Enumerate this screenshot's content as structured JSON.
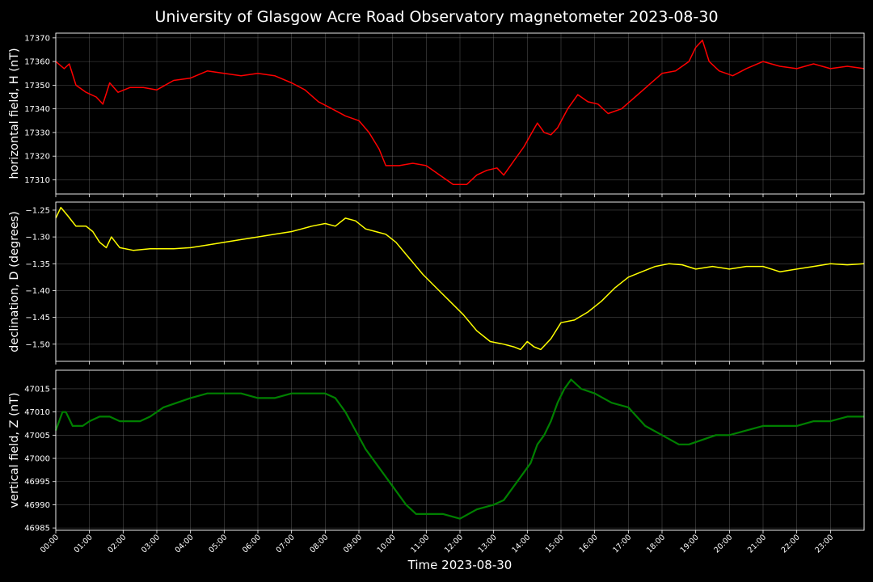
{
  "chart_data": {
    "type": "line",
    "title": "University of Glasgow Acre Road Observatory magnetometer 2023-08-30",
    "xlabel": "Time 2023-08-30",
    "x_ticks": [
      "00:00",
      "01:00",
      "02:00",
      "03:00",
      "04:00",
      "05:00",
      "06:00",
      "07:00",
      "08:00",
      "09:00",
      "10:00",
      "11:00",
      "12:00",
      "13:00",
      "14:00",
      "15:00",
      "16:00",
      "17:00",
      "18:00",
      "19:00",
      "20:00",
      "21:00",
      "22:00",
      "23:00"
    ],
    "x_range_hours": [
      0,
      24
    ],
    "grid": true,
    "panels": [
      {
        "ylabel": "horizontal field, H (nT)",
        "color": "#ff0000",
        "ylim": [
          17304,
          17372
        ],
        "yticks": [
          17310,
          17320,
          17330,
          17340,
          17350,
          17360,
          17370
        ],
        "series": {
          "x": [
            0,
            0.25,
            0.4,
            0.6,
            0.9,
            1.2,
            1.4,
            1.6,
            1.85,
            2.2,
            2.6,
            3.0,
            3.5,
            4.0,
            4.5,
            5.0,
            5.5,
            6.0,
            6.5,
            7.0,
            7.4,
            7.8,
            8.2,
            8.6,
            9.0,
            9.3,
            9.6,
            9.8,
            10.2,
            10.6,
            11.0,
            11.4,
            11.8,
            12.2,
            12.5,
            12.8,
            13.1,
            13.3,
            13.6,
            13.9,
            14.1,
            14.3,
            14.5,
            14.7,
            14.9,
            15.2,
            15.5,
            15.8,
            16.1,
            16.4,
            16.8,
            17.2,
            17.6,
            18.0,
            18.4,
            18.8,
            19.0,
            19.2,
            19.4,
            19.7,
            20.1,
            20.5,
            21.0,
            21.5,
            22.0,
            22.5,
            23.0,
            23.5,
            24.0
          ],
          "values": [
            17360,
            17357,
            17359,
            17350,
            17347,
            17345,
            17342,
            17351,
            17347,
            17349,
            17349,
            17348,
            17352,
            17353,
            17356,
            17355,
            17354,
            17355,
            17354,
            17351,
            17348,
            17343,
            17340,
            17337,
            17335,
            17330,
            17323,
            17316,
            17316,
            17317,
            17316,
            17312,
            17308,
            17308,
            17312,
            17314,
            17315,
            17312,
            17318,
            17324,
            17329,
            17334,
            17330,
            17329,
            17332,
            17340,
            17346,
            17343,
            17342,
            17338,
            17340,
            17345,
            17350,
            17355,
            17356,
            17360,
            17366,
            17369,
            17360,
            17356,
            17354,
            17357,
            17360,
            17358,
            17357,
            17359,
            17357,
            17358,
            17357
          ]
        }
      },
      {
        "ylabel": "declination, D (degrees)",
        "color": "#ffff00",
        "ylim": [
          -1.532,
          -1.235
        ],
        "yticks": [
          -1.25,
          -1.3,
          -1.35,
          -1.4,
          -1.45,
          -1.5
        ],
        "ytick_labels": [
          "−1.25",
          "−1.30",
          "−1.35",
          "−1.40",
          "−1.45",
          "−1.50"
        ],
        "series": {
          "x": [
            0,
            0.15,
            0.35,
            0.6,
            0.9,
            1.1,
            1.3,
            1.5,
            1.65,
            1.9,
            2.3,
            2.8,
            3.5,
            4.0,
            4.5,
            5.0,
            5.5,
            6.0,
            6.5,
            7.0,
            7.3,
            7.6,
            8.0,
            8.3,
            8.6,
            8.9,
            9.2,
            9.5,
            9.8,
            10.1,
            10.5,
            10.9,
            11.3,
            11.7,
            12.1,
            12.5,
            12.9,
            13.3,
            13.6,
            13.8,
            14.0,
            14.2,
            14.4,
            14.7,
            15.0,
            15.4,
            15.8,
            16.2,
            16.6,
            17.0,
            17.4,
            17.8,
            18.2,
            18.6,
            19.0,
            19.5,
            20.0,
            20.5,
            21.0,
            21.5,
            22.0,
            22.5,
            23.0,
            23.5,
            24.0
          ],
          "values": [
            -1.265,
            -1.245,
            -1.26,
            -1.28,
            -1.28,
            -1.29,
            -1.31,
            -1.32,
            -1.3,
            -1.32,
            -1.325,
            -1.322,
            -1.322,
            -1.32,
            -1.315,
            -1.31,
            -1.305,
            -1.3,
            -1.295,
            -1.29,
            -1.285,
            -1.28,
            -1.275,
            -1.28,
            -1.265,
            -1.27,
            -1.285,
            -1.29,
            -1.295,
            -1.31,
            -1.34,
            -1.37,
            -1.395,
            -1.42,
            -1.445,
            -1.475,
            -1.495,
            -1.5,
            -1.505,
            -1.51,
            -1.495,
            -1.505,
            -1.51,
            -1.49,
            -1.46,
            -1.455,
            -1.44,
            -1.42,
            -1.395,
            -1.375,
            -1.365,
            -1.355,
            -1.35,
            -1.352,
            -1.36,
            -1.355,
            -1.36,
            -1.355,
            -1.355,
            -1.365,
            -1.36,
            -1.355,
            -1.35,
            -1.352,
            -1.35
          ]
        }
      },
      {
        "ylabel": "vertical field, Z (nT)",
        "color": "#008000",
        "ylim": [
          46984.5,
          47019
        ],
        "yticks": [
          46985,
          46990,
          46995,
          47000,
          47005,
          47010,
          47015
        ],
        "series": {
          "x": [
            0,
            0.2,
            0.3,
            0.5,
            0.8,
            1.0,
            1.3,
            1.6,
            1.9,
            2.2,
            2.5,
            2.8,
            3.2,
            3.6,
            4.0,
            4.5,
            5.0,
            5.5,
            6.0,
            6.5,
            7.0,
            7.5,
            8.0,
            8.3,
            8.6,
            8.9,
            9.2,
            9.5,
            9.8,
            10.1,
            10.4,
            10.7,
            11.0,
            11.5,
            12.0,
            12.5,
            13.0,
            13.3,
            13.6,
            13.9,
            14.1,
            14.3,
            14.5,
            14.7,
            14.9,
            15.1,
            15.3,
            15.6,
            16.0,
            16.5,
            17.0,
            17.5,
            18.0,
            18.5,
            18.8,
            19.2,
            19.6,
            20.0,
            20.5,
            21.0,
            21.5,
            22.0,
            22.5,
            23.0,
            23.5,
            24.0
          ],
          "values": [
            47006,
            47010,
            47010,
            47007,
            47007,
            47008,
            47009,
            47009,
            47008,
            47008,
            47008,
            47009,
            47011,
            47012,
            47013,
            47014,
            47014,
            47014,
            47013,
            47013,
            47014,
            47014,
            47014,
            47013,
            47010,
            47006,
            47002,
            46999,
            46996,
            46993,
            46990,
            46988,
            46988,
            46988,
            46987,
            46989,
            46990,
            46991,
            46994,
            46997,
            46999,
            47003,
            47005,
            47008,
            47012,
            47015,
            47017,
            47015,
            47014,
            47012,
            47011,
            47007,
            47005,
            47003,
            47003,
            47004,
            47005,
            47005,
            47006,
            47007,
            47007,
            47007,
            47008,
            47008,
            47009,
            47009
          ]
        }
      }
    ]
  }
}
